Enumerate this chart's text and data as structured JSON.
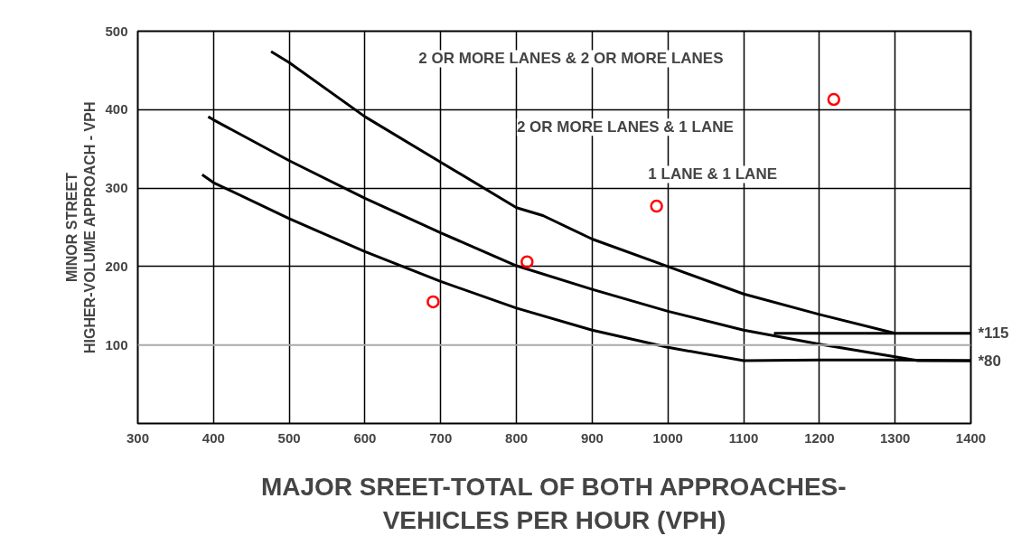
{
  "chart_data": {
    "type": "line",
    "xlabel": "MAJOR SREET-TOTAL OF BOTH APPROACHES-\nVEHICLES PER HOUR (VPH)",
    "ylabel": "MINOR STREET\nHIGHER-VOLUME APPROACH - VPH",
    "xlim": [
      300,
      1400
    ],
    "xticks": [
      300,
      400,
      500,
      600,
      700,
      800,
      900,
      1000,
      1100,
      1200,
      1300,
      1400
    ],
    "ylim": [
      0,
      500
    ],
    "yticks": [
      100,
      200,
      300,
      400,
      500
    ],
    "grid": true,
    "line_style": "solid",
    "series": [
      {
        "color": "#000000",
        "x": [
          476,
          500,
          600,
          700,
          800,
          835,
          900,
          1000,
          1100,
          1200,
          1300,
          1400
        ],
        "values": [
          474,
          460,
          391,
          333,
          275,
          265,
          235,
          200,
          165,
          139,
          115,
          115
        ]
      },
      {
        "color": "#000000",
        "x": [
          393,
          400,
          500,
          600,
          700,
          800,
          900,
          1000,
          1100,
          1200,
          1300,
          1330,
          1400
        ],
        "values": [
          391,
          387,
          335,
          287,
          243,
          201,
          171,
          143,
          119,
          101,
          85,
          80,
          80
        ]
      },
      {
        "color": "#000000",
        "x": [
          1140,
          1300
        ],
        "values": [
          115,
          115
        ]
      },
      {
        "color": "#000000",
        "x": [
          385,
          400,
          500,
          600,
          700,
          800,
          900,
          1000,
          1100,
          1200,
          1300,
          1400
        ],
        "values": [
          317,
          307,
          261,
          219,
          181,
          147,
          119,
          97,
          80,
          81,
          81,
          80
        ]
      },
      {
        "type": "scatter",
        "color": "#ff0000",
        "marker": "circle",
        "x": [
          690,
          814,
          985,
          1219
        ],
        "values": [
          155,
          206,
          277,
          413
        ]
      }
    ],
    "ref_lines": [
      {
        "axis": "y",
        "value": 100,
        "color": "#aaaaaa"
      }
    ],
    "annotations": [
      "2 OR MORE LANES & 2 OR MORE LANES",
      "2 OR MORE LANES & 1 LANE",
      "1 LANE & 1 LANE",
      {
        "text": "*115",
        "x": 1400,
        "y": 115
      },
      {
        "text": "*80",
        "x": 1400,
        "y": 80
      }
    ]
  }
}
